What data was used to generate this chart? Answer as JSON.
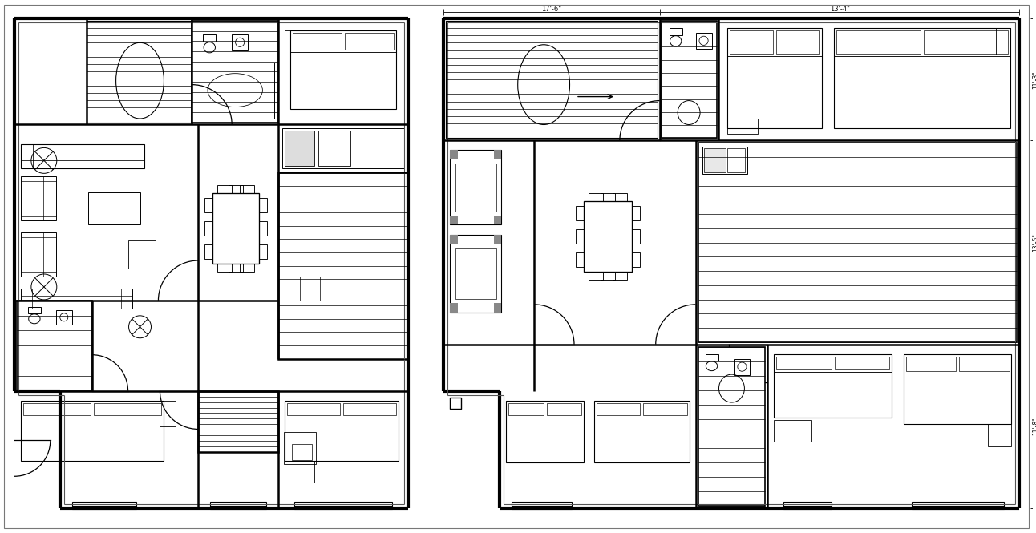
{
  "bg_color": "#ffffff",
  "line_color": "#000000",
  "thick": 3.0,
  "med": 1.8,
  "thin": 0.8,
  "dim_color": "#111111"
}
